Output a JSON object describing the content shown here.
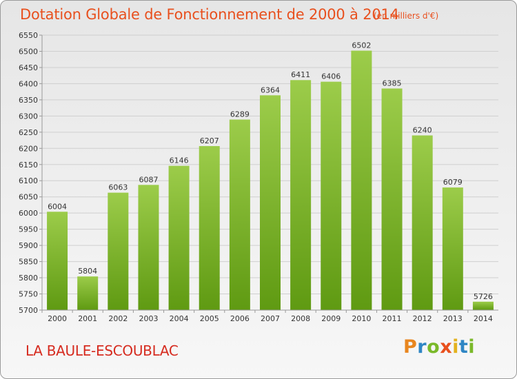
{
  "header": {
    "title": "Dotation Globale de Fonctionnement de 2000 à 2014",
    "unit": "(en milliers d'€)"
  },
  "footer": {
    "town": "LA BAULE-ESCOUBLAC",
    "logo": "Proxiti"
  },
  "colors": {
    "title": "#e8501e",
    "town": "#d62b1f",
    "bar_top": "#9ccc4a",
    "bar_bottom": "#5f9a12"
  },
  "chart_data": {
    "type": "bar",
    "title": "Dotation Globale de Fonctionnement de 2000 à 2014",
    "categories": [
      "2000",
      "2001",
      "2002",
      "2003",
      "2004",
      "2005",
      "2006",
      "2007",
      "2008",
      "2009",
      "2010",
      "2011",
      "2012",
      "2013",
      "2014"
    ],
    "values": [
      6004,
      5804,
      6063,
      6087,
      6146,
      6207,
      6289,
      6364,
      6411,
      6406,
      6502,
      6385,
      6240,
      6079,
      5726
    ],
    "ylim": [
      5700,
      6550
    ],
    "yticks": [
      5700,
      5750,
      5800,
      5850,
      5900,
      5950,
      6000,
      6050,
      6100,
      6150,
      6200,
      6250,
      6300,
      6350,
      6400,
      6450,
      6500,
      6550
    ],
    "grid": true,
    "xlabel": "",
    "ylabel": ""
  }
}
